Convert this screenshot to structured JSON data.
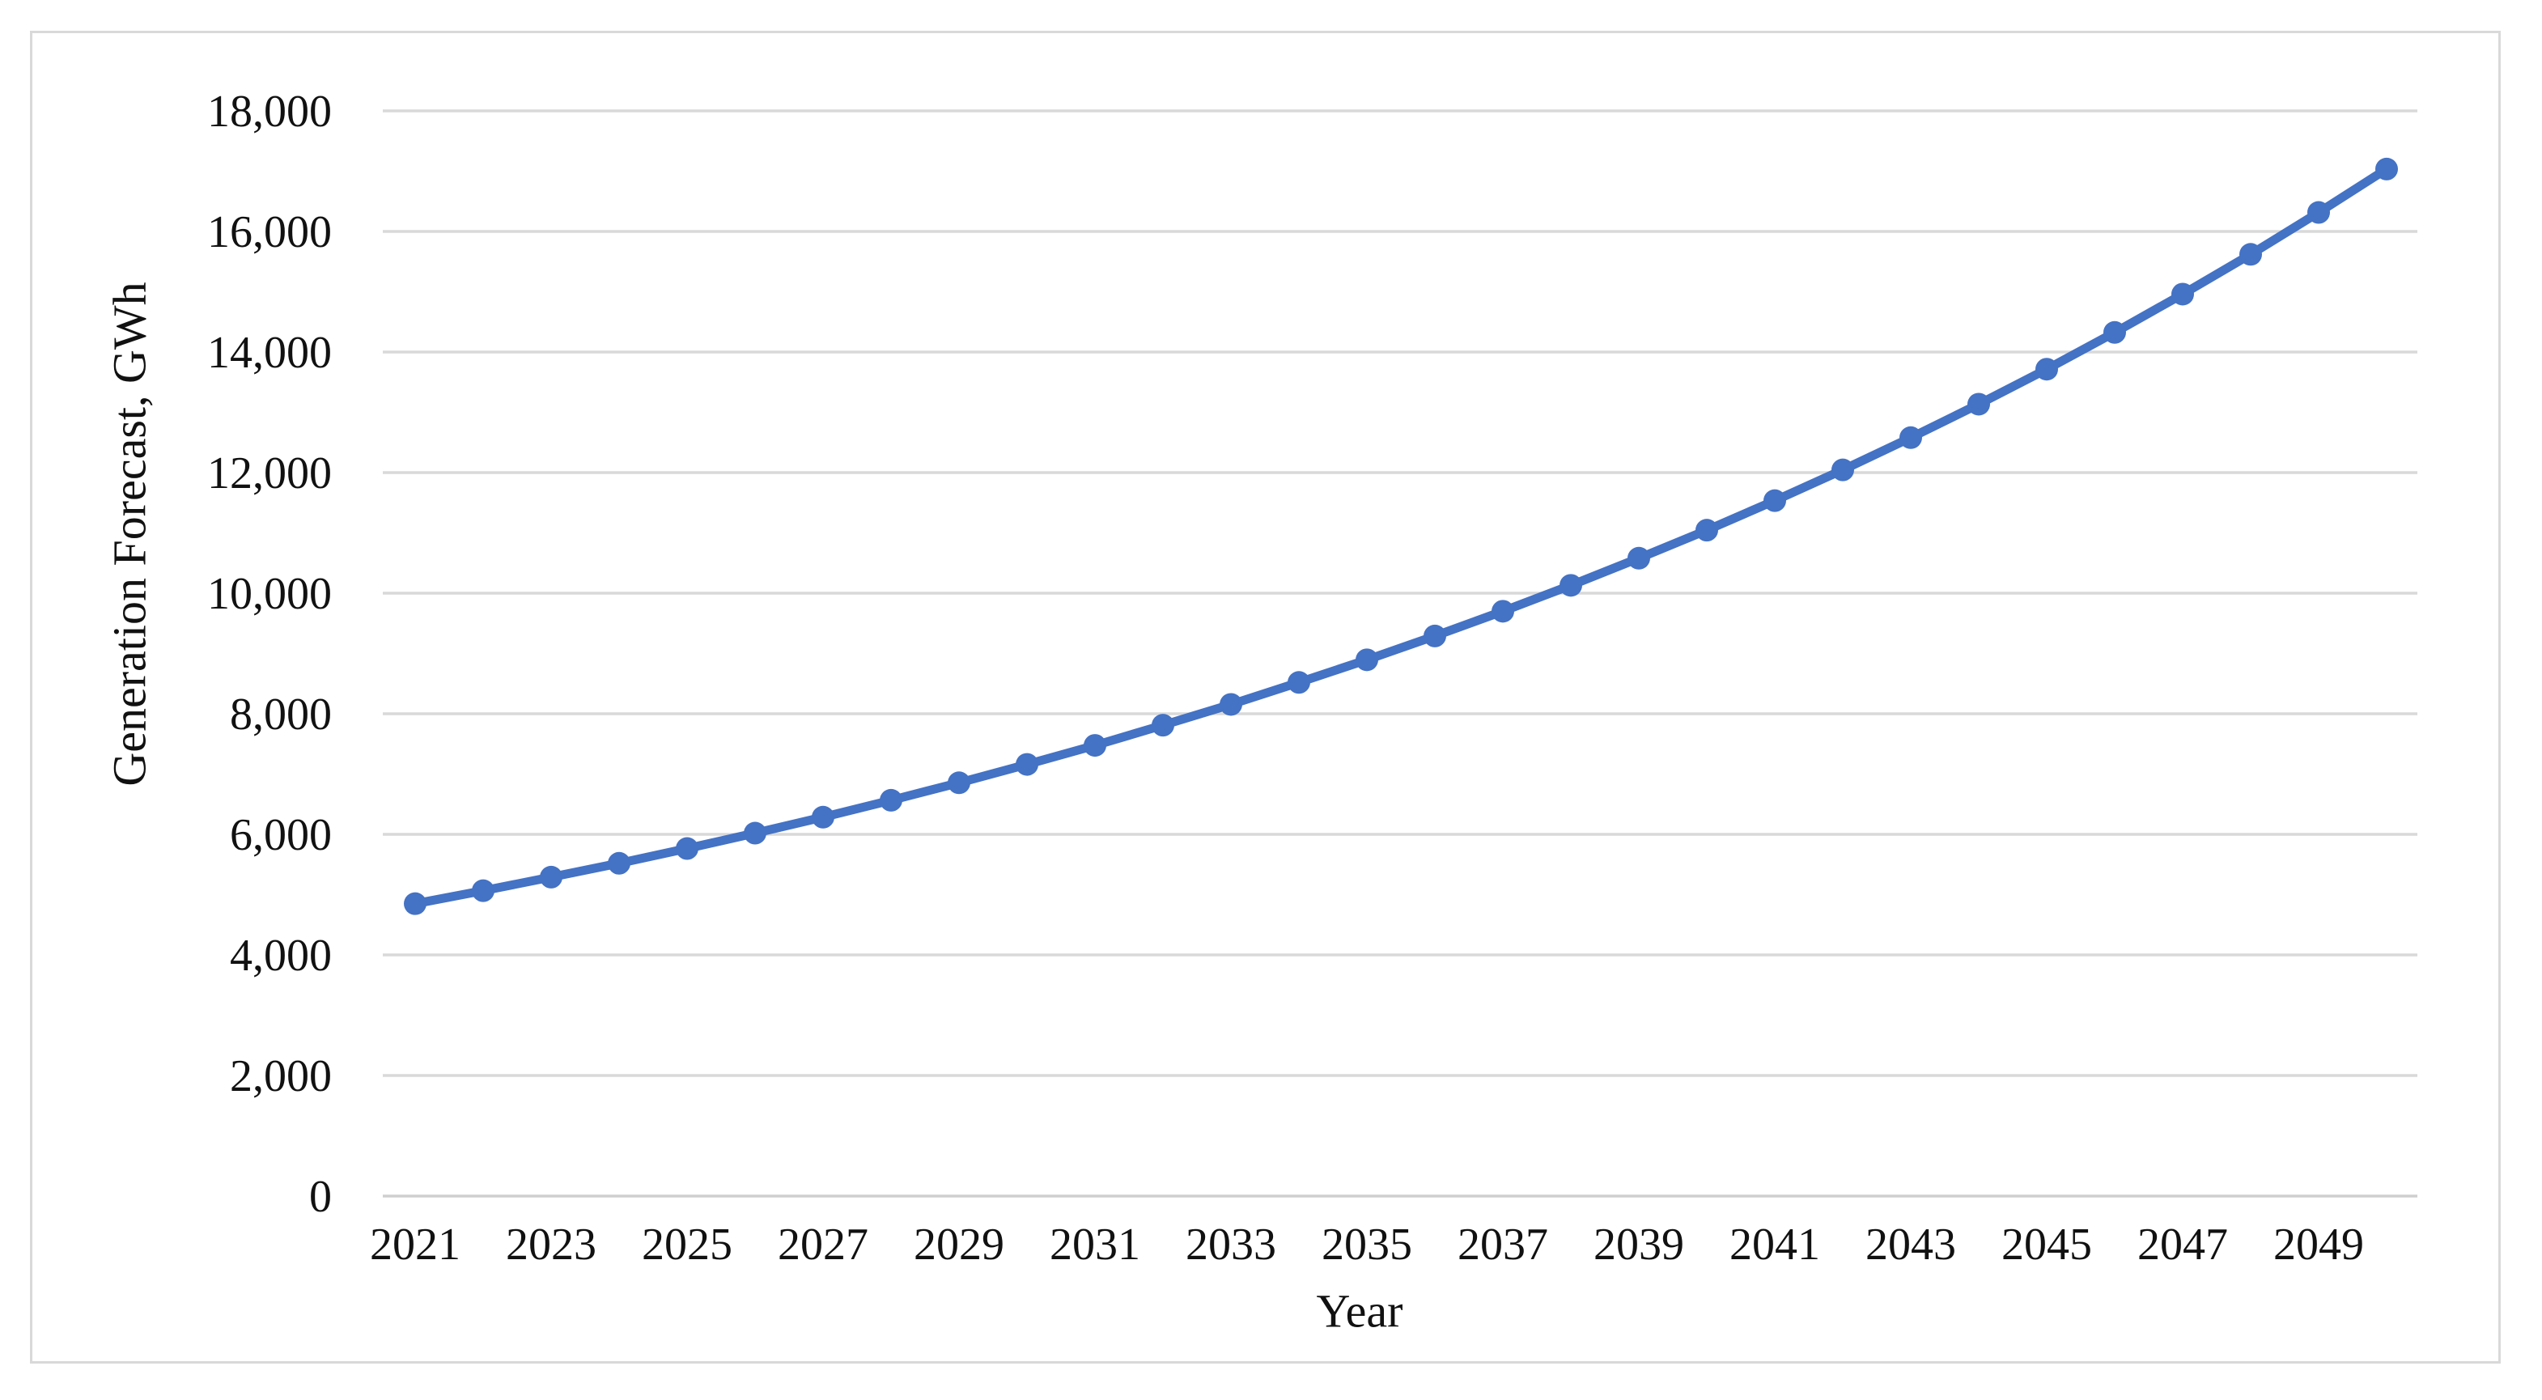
{
  "figure": {
    "background_color": "#ffffff",
    "border_color": "#d9d9d9"
  },
  "chart_data": {
    "type": "line",
    "title": "",
    "xlabel": "Year",
    "ylabel": "Generation Forecast, GWh",
    "series_name": "Generation Forecast",
    "x": [
      2021,
      2022,
      2023,
      2024,
      2025,
      2026,
      2027,
      2028,
      2029,
      2030,
      2031,
      2032,
      2033,
      2034,
      2035,
      2036,
      2037,
      2038,
      2039,
      2040,
      2041,
      2042,
      2043,
      2044,
      2045,
      2046,
      2047,
      2048,
      2049,
      2050
    ],
    "values": [
      4850,
      5065,
      5290,
      5520,
      5765,
      6020,
      6285,
      6565,
      6855,
      7160,
      7475,
      7810,
      8155,
      8520,
      8895,
      9290,
      9700,
      10130,
      10580,
      11045,
      11535,
      12045,
      12580,
      13135,
      13715,
      14325,
      14960,
      15620,
      16315,
      17035
    ],
    "x_tick_labels": [
      "2021",
      "2023",
      "2025",
      "2027",
      "2029",
      "2031",
      "2033",
      "2035",
      "2037",
      "2039",
      "2041",
      "2043",
      "2045",
      "2047",
      "2049"
    ],
    "y_ticks": [
      0,
      2000,
      4000,
      6000,
      8000,
      10000,
      12000,
      14000,
      16000,
      18000
    ],
    "y_tick_labels": [
      "0",
      "2,000",
      "4,000",
      "6,000",
      "8,000",
      "10,000",
      "12,000",
      "14,000",
      "16,000",
      "18,000"
    ],
    "ylim": [
      0,
      18000
    ],
    "grid": "horizontal",
    "legend": "none",
    "line_color": "#4472C4",
    "marker": "circle",
    "marker_color": "#4472C4",
    "gridline_color": "#d9d9d9",
    "axisline_color": "#cfcfcf",
    "text_color": "#111111"
  }
}
